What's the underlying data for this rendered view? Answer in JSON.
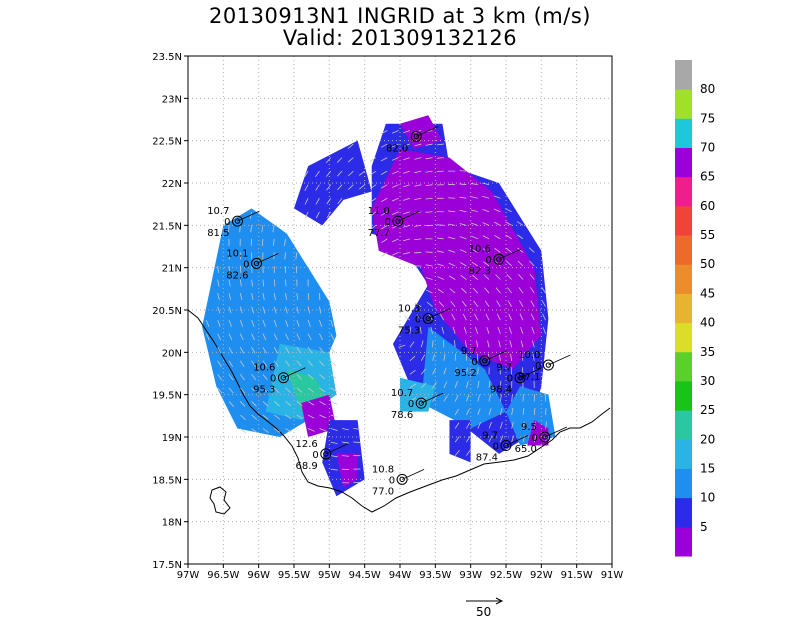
{
  "title": {
    "line1": "20130913N1 INGRID at 3 km (m/s)",
    "line2": "Valid: 201309132126"
  },
  "axes": {
    "lon_ticks": [
      "97W",
      "96.5W",
      "96W",
      "95.5W",
      "95W",
      "94.5W",
      "94W",
      "93.5W",
      "93W",
      "92.5W",
      "92W",
      "91.5W",
      "91W"
    ],
    "lat_ticks": [
      "17.5N",
      "18N",
      "18.5N",
      "19N",
      "19.5N",
      "20N",
      "20.5N",
      "21N",
      "21.5N",
      "22N",
      "22.5N",
      "23N",
      "23.5N"
    ],
    "lon_range": [
      -97,
      -91
    ],
    "lat_range": [
      17.5,
      23.5
    ],
    "grid": true
  },
  "colorbar": {
    "labels": [
      "5",
      "10",
      "15",
      "20",
      "25",
      "30",
      "35",
      "40",
      "45",
      "50",
      "55",
      "60",
      "65",
      "70",
      "75",
      "80"
    ],
    "colors": [
      "#9b00d8",
      "#2b2be8",
      "#1e8ff0",
      "#2ab4e6",
      "#2ac8a0",
      "#18c418",
      "#5ad02a",
      "#dcdc2a",
      "#e8b430",
      "#ec8c2a",
      "#ee6a2a",
      "#f04438",
      "#ee1e8c",
      "#9c00d8",
      "#1ec8dc",
      "#a0e028",
      "#a8a8a8"
    ]
  },
  "reference_vector": {
    "label": "50"
  },
  "stations": [
    {
      "lon": -96.3,
      "lat": 21.55,
      "top": "10.7",
      "mid": "0",
      "bottom": "81.5"
    },
    {
      "lon": -96.03,
      "lat": 21.05,
      "top": "10.1",
      "mid": "0",
      "bottom": "82.6"
    },
    {
      "lon": -94.03,
      "lat": 21.55,
      "top": "11.0",
      "mid": "0",
      "bottom": "77.7"
    },
    {
      "lon": -93.77,
      "lat": 22.55,
      "top": "",
      "mid": "",
      "bottom": "82.0"
    },
    {
      "lon": -92.6,
      "lat": 21.1,
      "top": "10.6",
      "mid": "0",
      "bottom": "82.3"
    },
    {
      "lon": -93.6,
      "lat": 20.4,
      "top": "10.3",
      "mid": "0",
      "bottom": "75.3"
    },
    {
      "lon": -92.8,
      "lat": 19.9,
      "top": "9.7",
      "mid": "0",
      "bottom": "95.2"
    },
    {
      "lon": -95.65,
      "lat": 19.7,
      "top": "10.6",
      "mid": "0",
      "bottom": "95.3"
    },
    {
      "lon": -93.7,
      "lat": 19.4,
      "top": "10.7",
      "mid": "0",
      "bottom": "78.6"
    },
    {
      "lon": -92.3,
      "lat": 19.7,
      "top": "9.7",
      "mid": "0",
      "bottom": "98.4"
    },
    {
      "lon": -91.9,
      "lat": 19.85,
      "top": "10.0",
      "mid": "0",
      "bottom": "87.1"
    },
    {
      "lon": -92.5,
      "lat": 18.9,
      "top": "9.7",
      "mid": "0",
      "bottom": "87.4"
    },
    {
      "lon": -91.95,
      "lat": 19.0,
      "top": "9.5",
      "mid": "0",
      "bottom": "65.0"
    },
    {
      "lon": -95.05,
      "lat": 18.8,
      "top": "12.6",
      "mid": "0",
      "bottom": "68.9"
    },
    {
      "lon": -93.97,
      "lat": 18.5,
      "top": "10.8",
      "mid": "0",
      "bottom": "77.0"
    }
  ]
}
